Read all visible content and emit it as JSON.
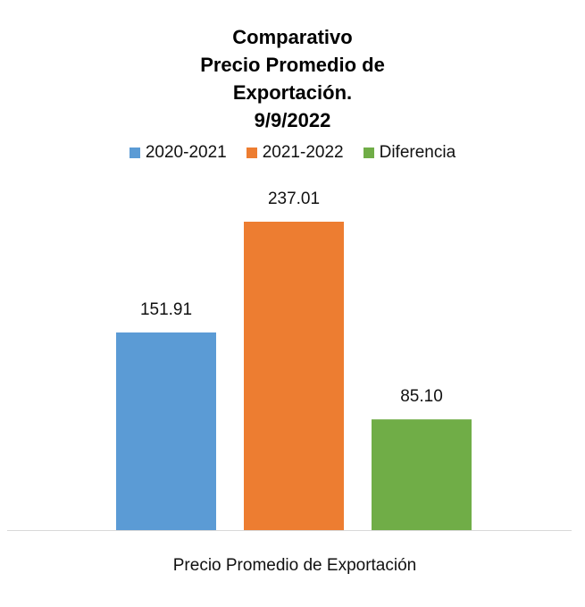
{
  "chart_data": {
    "type": "bar",
    "title_lines": [
      "Comparativo",
      "Precio Promedio de",
      "Exportación.",
      "9/9/2022"
    ],
    "categories": [
      "Precio Promedio de Exportación"
    ],
    "series": [
      {
        "name": "2020-2021",
        "values": [
          151.91
        ],
        "label": "151.91",
        "color": "#5B9BD5"
      },
      {
        "name": "2021-2022",
        "values": [
          237.01
        ],
        "label": "237.01",
        "color": "#ED7D31"
      },
      {
        "name": "Diferencia",
        "values": [
          85.1
        ],
        "label": "85.10",
        "color": "#70AD47"
      }
    ],
    "ylim": [
      0,
      250
    ],
    "grid": false,
    "legend_position": "top"
  }
}
